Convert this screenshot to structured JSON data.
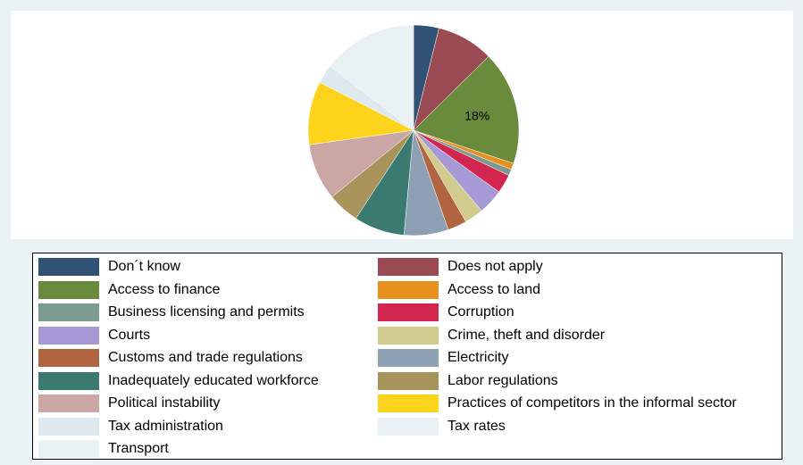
{
  "chart_data": {
    "type": "pie",
    "title": "",
    "slices": [
      {
        "name": "Don´t know",
        "value": 4,
        "color": "#2f5275"
      },
      {
        "name": "Does not apply",
        "value": 9,
        "color": "#9a4a52"
      },
      {
        "name": "Access to finance",
        "value": 18,
        "color": "#6a8a3c",
        "label": "18%"
      },
      {
        "name": "Access to land",
        "value": 1,
        "color": "#e8901e"
      },
      {
        "name": "Business licensing and permits",
        "value": 1,
        "color": "#7c9b90"
      },
      {
        "name": "Corruption",
        "value": 3,
        "color": "#d22550"
      },
      {
        "name": "Courts",
        "value": 4,
        "color": "#a59ad6"
      },
      {
        "name": "Crime, theft and disorder",
        "value": 3,
        "color": "#d2cb8e"
      },
      {
        "name": "Customs and trade regulations",
        "value": 3,
        "color": "#b0643f"
      },
      {
        "name": "Electricity",
        "value": 7,
        "color": "#8ea0b4"
      },
      {
        "name": "Inadequately educated workforce",
        "value": 8,
        "color": "#3b7a71"
      },
      {
        "name": "Labor regulations",
        "value": 5,
        "color": "#a8945a"
      },
      {
        "name": "Political instability",
        "value": 9,
        "color": "#caa6a4"
      },
      {
        "name": "Practices of competitors in the informal sector",
        "value": 10,
        "color": "#fdd41b"
      },
      {
        "name": "Tax administration",
        "value": 3,
        "color": "#dde9ee"
      },
      {
        "name": "Tax rates",
        "value": 0,
        "color": "#e9f1f4"
      },
      {
        "name": "Transport",
        "value": 15,
        "color": "#e9f1f3"
      }
    ],
    "legend_position": "bottom",
    "legend_columns": 2
  }
}
